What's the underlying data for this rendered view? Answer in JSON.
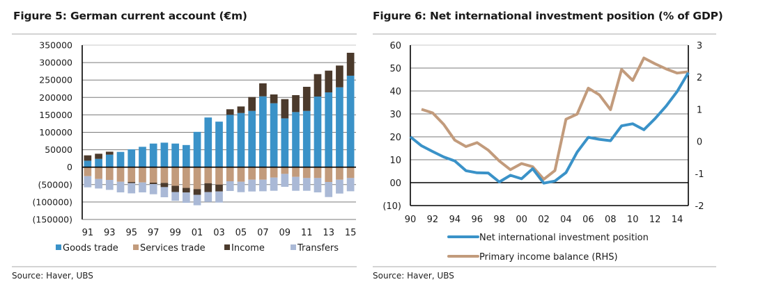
{
  "chart_data": [
    {
      "type": "bar",
      "stacked": true,
      "title": "Figure 5: German current account (€m)",
      "xlabel": "",
      "ylabel": "",
      "source": "Source: Haver, UBS",
      "categories": [
        "91",
        "92",
        "93",
        "94",
        "95",
        "96",
        "97",
        "98",
        "99",
        "00",
        "01",
        "02",
        "03",
        "04",
        "05",
        "06",
        "07",
        "08",
        "09",
        "10",
        "11",
        "12",
        "13",
        "14",
        "15"
      ],
      "x_tick_labels": [
        "91",
        "93",
        "95",
        "97",
        "99",
        "01",
        "03",
        "05",
        "07",
        "09",
        "11",
        "13",
        "15"
      ],
      "y_tick_labels": [
        "350000",
        "300000",
        "250000",
        "200000",
        "150000",
        "100000",
        "50000",
        "0",
        "(50000)",
        "(100000)",
        "(150000)"
      ],
      "y_ticks": [
        350000,
        300000,
        250000,
        200000,
        150000,
        100000,
        50000,
        0,
        -50000,
        -100000,
        -150000
      ],
      "ylim": [
        -150000,
        350000
      ],
      "grid": true,
      "legend_position": "bottom",
      "series": [
        {
          "name": "Goods trade",
          "color": "#3a92c8",
          "values": [
            18500,
            23900,
            35900,
            43800,
            51200,
            58400,
            67700,
            70300,
            67700,
            63500,
            101300,
            142500,
            130600,
            150200,
            155400,
            161400,
            203200,
            183300,
            140000,
            158000,
            161400,
            202600,
            214500,
            229100,
            262400
          ]
        },
        {
          "name": "Services trade",
          "color": "#c29b7c",
          "values": [
            -25900,
            -33900,
            -36500,
            -41800,
            -42500,
            -43800,
            -44400,
            -45200,
            -53500,
            -59500,
            -63000,
            -46100,
            -50100,
            -40400,
            -41800,
            -35900,
            -35900,
            -29900,
            -19300,
            -27900,
            -31200,
            -31200,
            -42500,
            -35900,
            -31200
          ]
        },
        {
          "name": "Income",
          "color": "#4b3a2c",
          "values": [
            15400,
            14600,
            8500,
            0,
            -3300,
            0,
            -4000,
            -12000,
            -17800,
            -13200,
            -16400,
            -25300,
            -19600,
            15900,
            18700,
            39800,
            37200,
            25300,
            55200,
            48600,
            69100,
            64300,
            62400,
            62400,
            65700
          ]
        },
        {
          "name": "Transfers",
          "color": "#aab9d6",
          "values": [
            -31900,
            -27300,
            -28600,
            -30500,
            -29300,
            -28500,
            -29300,
            -29100,
            -25200,
            -29500,
            -29900,
            -28300,
            -31900,
            -27900,
            -29900,
            -33800,
            -33200,
            -37800,
            -37100,
            -39800,
            -36500,
            -41100,
            -43200,
            -39800,
            -37900
          ]
        }
      ]
    },
    {
      "type": "line",
      "title": "Figure 6: Net international investment position (% of GDP)",
      "xlabel": "",
      "ylabel": "",
      "source": "Source: Haver, UBS",
      "x": [
        "90",
        "91",
        "92",
        "93",
        "94",
        "95",
        "96",
        "97",
        "98",
        "99",
        "00",
        "01",
        "02",
        "03",
        "04",
        "05",
        "06",
        "07",
        "08",
        "09",
        "10",
        "11",
        "12",
        "13",
        "14",
        "15"
      ],
      "x_tick_labels": [
        "90",
        "92",
        "94",
        "96",
        "98",
        "00",
        "02",
        "04",
        "06",
        "08",
        "10",
        "12",
        "14"
      ],
      "y_tick_labels": [
        "60",
        "50",
        "40",
        "30",
        "20",
        "10",
        "00",
        "(10)"
      ],
      "y_ticks": [
        60,
        50,
        40,
        30,
        20,
        10,
        0,
        -10
      ],
      "ylim": [
        -10,
        60
      ],
      "y2_tick_labels": [
        "3",
        "2",
        "1",
        "0",
        "-1",
        "-2"
      ],
      "y2_ticks": [
        3,
        2,
        1,
        0,
        -1,
        -2
      ],
      "y2lim": [
        -2,
        3
      ],
      "grid": true,
      "legend_position": "bottom",
      "series": [
        {
          "name": "Net international investment position",
          "axis": "left",
          "color": "#3a92c8",
          "values": [
            20.0,
            16.1,
            13.6,
            11.2,
            9.5,
            5.2,
            4.3,
            4.2,
            0.3,
            3.2,
            1.7,
            6.1,
            -0.2,
            0.7,
            4.4,
            13.3,
            19.8,
            18.9,
            18.3,
            24.8,
            25.7,
            23.1,
            27.9,
            33.4,
            39.8,
            48.0
          ]
        },
        {
          "name": "Primary income balance (RHS)",
          "axis": "right",
          "color": "#c29b7c",
          "values": [
            null,
            1.0,
            0.89,
            0.53,
            0.04,
            -0.16,
            -0.04,
            -0.27,
            -0.61,
            -0.88,
            -0.69,
            -0.79,
            -1.18,
            -0.91,
            0.69,
            0.85,
            1.66,
            1.45,
            0.99,
            2.24,
            1.9,
            2.6,
            2.42,
            2.26,
            2.13,
            2.17
          ]
        }
      ]
    }
  ]
}
